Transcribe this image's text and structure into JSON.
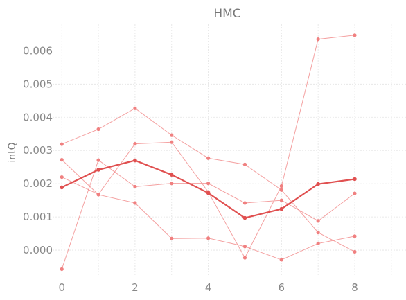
{
  "chart_data": {
    "type": "line",
    "title": "HMC",
    "xlabel": "",
    "ylabel": "intQ",
    "xlim": [
      -0.25,
      9.4
    ],
    "ylim": [
      -0.00075,
      0.0068
    ],
    "xticks": [
      0,
      2,
      4,
      6,
      8
    ],
    "xtick_labels": [
      "0",
      "2",
      "4",
      "6",
      "8"
    ],
    "yticks": [
      0.0,
      0.001,
      0.002,
      0.003,
      0.004,
      0.005,
      0.006
    ],
    "ytick_labels": [
      "0.000",
      "0.001",
      "0.002",
      "0.003",
      "0.004",
      "0.005",
      "0.006"
    ],
    "grid": true,
    "colors": {
      "series": "#f08080",
      "mean": "#e05050"
    },
    "x": [
      0,
      1,
      2,
      3,
      4,
      5,
      6,
      7,
      8
    ],
    "series": [
      {
        "values": [
          0.00319,
          0.00364,
          0.00427,
          0.00346,
          0.00277,
          0.00258,
          0.00181,
          0.00053,
          -5e-05
        ]
      },
      {
        "values": [
          0.00272,
          0.00167,
          0.00142,
          0.00035,
          0.00036,
          0.00011,
          -0.00029,
          0.0002,
          0.00042
        ]
      },
      {
        "values": [
          0.0022,
          0.00168,
          0.0032,
          0.00325,
          0.00175,
          -0.00023,
          0.00193,
          0.00635,
          0.00647
        ]
      },
      {
        "values": [
          -0.00057,
          0.00271,
          0.00191,
          0.00201,
          0.00201,
          0.00142,
          0.0015,
          0.00088,
          0.00171
        ]
      }
    ],
    "mean": {
      "values": [
        0.00189,
        0.00242,
        0.0027,
        0.00227,
        0.00172,
        0.00097,
        0.00124,
        0.00199,
        0.00214
      ]
    }
  }
}
